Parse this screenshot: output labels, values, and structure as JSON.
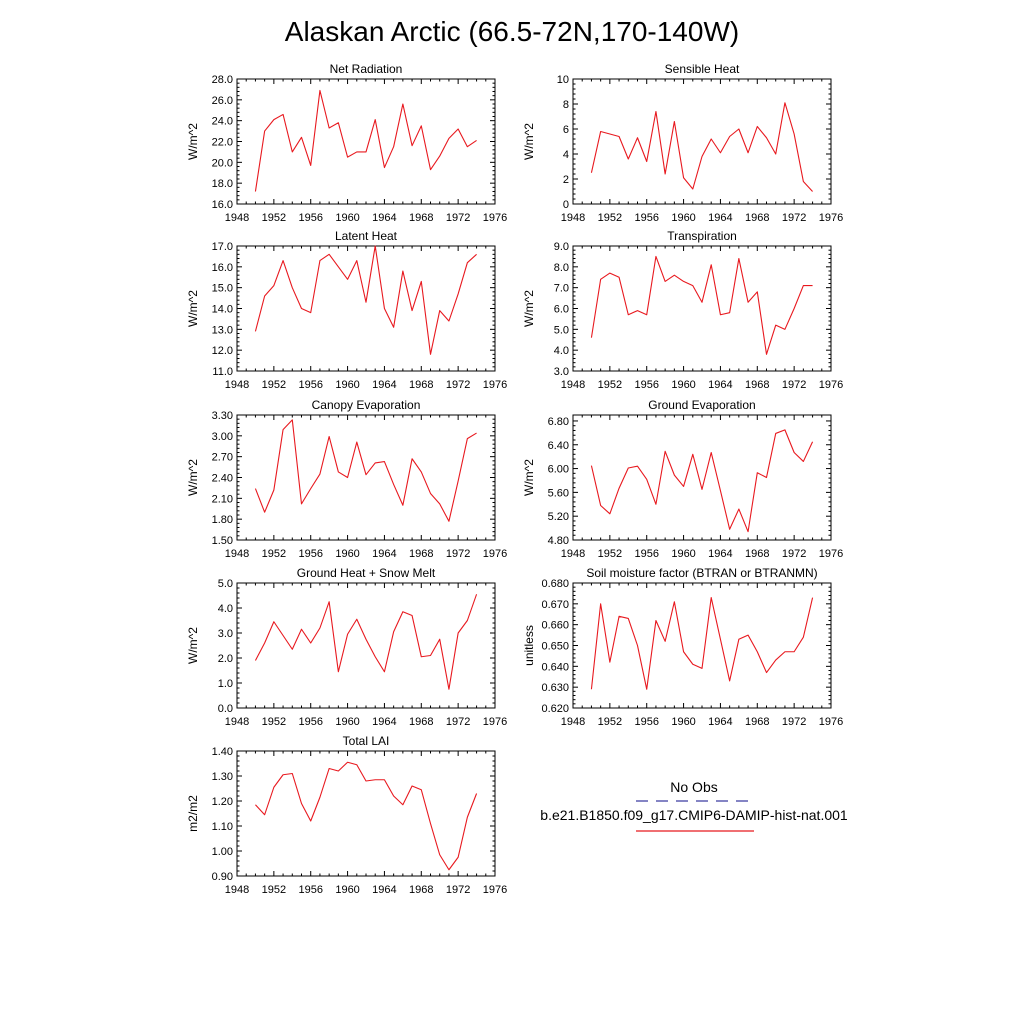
{
  "figure": {
    "title": "Alaskan Arctic (66.5-72N,170-140W)",
    "legend": {
      "obs_label": "No Obs",
      "obs_color": "#3a3aa0",
      "model_label": "b.e21.B1850.f09_g17.CMIP6-DAMIP-hist-nat.001",
      "model_color": "#e8191f"
    }
  },
  "chart_data": [
    {
      "type": "line",
      "title": "Net Radiation",
      "ylabel": "W/m^2",
      "xlim": [
        1948,
        1976
      ],
      "xticks": [
        1948,
        1952,
        1956,
        1960,
        1964,
        1968,
        1972,
        1976
      ],
      "ylim": [
        16.0,
        28.0
      ],
      "yticks": [
        "16.0",
        "18.0",
        "20.0",
        "22.0",
        "24.0",
        "26.0",
        "28.0"
      ],
      "series": [
        {
          "color": "#e8191f",
          "x": [
            1950,
            1951,
            1952,
            1953,
            1954,
            1955,
            1956,
            1957,
            1958,
            1959,
            1960,
            1961,
            1962,
            1963,
            1964,
            1965,
            1966,
            1967,
            1968,
            1969,
            1970,
            1971,
            1972,
            1973,
            1974
          ],
          "y": [
            17.2,
            23.0,
            24.1,
            24.6,
            21.0,
            22.4,
            19.7,
            26.9,
            23.3,
            23.8,
            20.5,
            21.0,
            21.0,
            24.1,
            19.5,
            21.5,
            25.6,
            21.6,
            23.5,
            19.3,
            20.6,
            22.3,
            23.2,
            21.5,
            22.1
          ]
        }
      ]
    },
    {
      "type": "line",
      "title": "Sensible Heat",
      "ylabel": "W/m^2",
      "xlim": [
        1948,
        1976
      ],
      "xticks": [
        1948,
        1952,
        1956,
        1960,
        1964,
        1968,
        1972,
        1976
      ],
      "ylim": [
        0,
        10
      ],
      "yticks": [
        "0",
        "2",
        "4",
        "6",
        "8",
        "10"
      ],
      "series": [
        {
          "color": "#e8191f",
          "x": [
            1950,
            1951,
            1952,
            1953,
            1954,
            1955,
            1956,
            1957,
            1958,
            1959,
            1960,
            1961,
            1962,
            1963,
            1964,
            1965,
            1966,
            1967,
            1968,
            1969,
            1970,
            1971,
            1972,
            1973,
            1974
          ],
          "y": [
            2.5,
            5.8,
            5.6,
            5.4,
            3.6,
            5.3,
            3.4,
            7.4,
            2.4,
            6.6,
            2.1,
            1.2,
            3.8,
            5.2,
            4.1,
            5.4,
            6.0,
            4.1,
            6.2,
            5.3,
            4.0,
            8.1,
            5.6,
            1.8,
            1.0
          ]
        }
      ]
    },
    {
      "type": "line",
      "title": "Latent Heat",
      "ylabel": "W/m^2",
      "xlim": [
        1948,
        1976
      ],
      "xticks": [
        1948,
        1952,
        1956,
        1960,
        1964,
        1968,
        1972,
        1976
      ],
      "ylim": [
        11.0,
        17.0
      ],
      "yticks": [
        "11.0",
        "12.0",
        "13.0",
        "14.0",
        "15.0",
        "16.0",
        "17.0"
      ],
      "series": [
        {
          "color": "#e8191f",
          "x": [
            1950,
            1951,
            1952,
            1953,
            1954,
            1955,
            1956,
            1957,
            1958,
            1959,
            1960,
            1961,
            1962,
            1963,
            1964,
            1965,
            1966,
            1967,
            1968,
            1969,
            1970,
            1971,
            1972,
            1973,
            1974
          ],
          "y": [
            12.9,
            14.6,
            15.1,
            16.3,
            15.0,
            14.0,
            13.8,
            16.3,
            16.6,
            16.0,
            15.4,
            16.3,
            14.3,
            17.0,
            14.0,
            13.1,
            15.8,
            13.9,
            15.3,
            11.8,
            13.9,
            13.4,
            14.7,
            16.2,
            16.6
          ]
        }
      ]
    },
    {
      "type": "line",
      "title": "Transpiration",
      "ylabel": "W/m^2",
      "xlim": [
        1948,
        1976
      ],
      "xticks": [
        1948,
        1952,
        1956,
        1960,
        1964,
        1968,
        1972,
        1976
      ],
      "ylim": [
        3.0,
        9.0
      ],
      "yticks": [
        "3.0",
        "4.0",
        "5.0",
        "6.0",
        "7.0",
        "8.0",
        "9.0"
      ],
      "series": [
        {
          "color": "#e8191f",
          "x": [
            1950,
            1951,
            1952,
            1953,
            1954,
            1955,
            1956,
            1957,
            1958,
            1959,
            1960,
            1961,
            1962,
            1963,
            1964,
            1965,
            1966,
            1967,
            1968,
            1969,
            1970,
            1971,
            1972,
            1973,
            1974
          ],
          "y": [
            4.6,
            7.4,
            7.7,
            7.5,
            5.7,
            5.9,
            5.7,
            8.5,
            7.3,
            7.6,
            7.3,
            7.1,
            6.3,
            8.1,
            5.7,
            5.8,
            8.4,
            6.3,
            6.8,
            3.8,
            5.2,
            5.0,
            6.0,
            7.1,
            7.1
          ]
        }
      ]
    },
    {
      "type": "line",
      "title": "Canopy Evaporation",
      "ylabel": "W/m^2",
      "xlim": [
        1948,
        1976
      ],
      "xticks": [
        1948,
        1952,
        1956,
        1960,
        1964,
        1968,
        1972,
        1976
      ],
      "ylim": [
        1.5,
        3.3
      ],
      "yticks": [
        "1.50",
        "1.80",
        "2.10",
        "2.40",
        "2.70",
        "3.00",
        "3.30"
      ],
      "series": [
        {
          "color": "#e8191f",
          "x": [
            1950,
            1951,
            1952,
            1953,
            1954,
            1955,
            1956,
            1957,
            1958,
            1959,
            1960,
            1961,
            1962,
            1963,
            1964,
            1965,
            1966,
            1967,
            1968,
            1969,
            1970,
            1971,
            1972,
            1973,
            1974
          ],
          "y": [
            2.24,
            1.9,
            2.22,
            3.09,
            3.23,
            2.02,
            2.24,
            2.45,
            2.99,
            2.48,
            2.4,
            2.91,
            2.44,
            2.61,
            2.63,
            2.3,
            2.0,
            2.67,
            2.48,
            2.17,
            2.02,
            1.77,
            2.35,
            2.96,
            3.04
          ]
        }
      ]
    },
    {
      "type": "line",
      "title": "Ground Evaporation",
      "ylabel": "W/m^2",
      "xlim": [
        1948,
        1976
      ],
      "xticks": [
        1948,
        1952,
        1956,
        1960,
        1964,
        1968,
        1972,
        1976
      ],
      "ylim": [
        4.8,
        6.9
      ],
      "yticks": [
        "4.80",
        "5.20",
        "5.60",
        "6.00",
        "6.40",
        "6.80"
      ],
      "series": [
        {
          "color": "#e8191f",
          "x": [
            1950,
            1951,
            1952,
            1953,
            1954,
            1955,
            1956,
            1957,
            1958,
            1959,
            1960,
            1961,
            1962,
            1963,
            1964,
            1965,
            1966,
            1967,
            1968,
            1969,
            1970,
            1971,
            1972,
            1973,
            1974
          ],
          "y": [
            6.05,
            5.38,
            5.24,
            5.67,
            6.01,
            6.04,
            5.82,
            5.4,
            6.29,
            5.89,
            5.7,
            6.24,
            5.65,
            6.27,
            5.63,
            4.98,
            5.32,
            4.94,
            5.93,
            5.85,
            6.59,
            6.65,
            6.27,
            6.12,
            6.45
          ]
        }
      ]
    },
    {
      "type": "line",
      "title": "Ground Heat + Snow Melt",
      "ylabel": "W/m^2",
      "xlim": [
        1948,
        1976
      ],
      "xticks": [
        1948,
        1952,
        1956,
        1960,
        1964,
        1968,
        1972,
        1976
      ],
      "ylim": [
        0.0,
        5.0
      ],
      "yticks": [
        "0.0",
        "1.0",
        "2.0",
        "3.0",
        "4.0",
        "5.0"
      ],
      "series": [
        {
          "color": "#e8191f",
          "x": [
            1950,
            1951,
            1952,
            1953,
            1954,
            1955,
            1956,
            1957,
            1958,
            1959,
            1960,
            1961,
            1962,
            1963,
            1964,
            1965,
            1966,
            1967,
            1968,
            1969,
            1970,
            1971,
            1972,
            1973,
            1974
          ],
          "y": [
            1.9,
            2.6,
            3.45,
            2.9,
            2.35,
            3.15,
            2.6,
            3.2,
            4.25,
            1.45,
            2.95,
            3.55,
            2.75,
            2.05,
            1.45,
            3.05,
            3.85,
            3.7,
            2.05,
            2.1,
            2.75,
            0.75,
            3.0,
            3.5,
            4.55
          ]
        }
      ]
    },
    {
      "type": "line",
      "title": "Soil moisture factor (BTRAN or BTRANMN)",
      "ylabel": "unitless",
      "xlim": [
        1948,
        1976
      ],
      "xticks": [
        1948,
        1952,
        1956,
        1960,
        1964,
        1968,
        1972,
        1976
      ],
      "ylim": [
        0.62,
        0.68
      ],
      "yticks": [
        "0.620",
        "0.630",
        "0.640",
        "0.650",
        "0.660",
        "0.670",
        "0.680"
      ],
      "series": [
        {
          "color": "#e8191f",
          "x": [
            1950,
            1951,
            1952,
            1953,
            1954,
            1955,
            1956,
            1957,
            1958,
            1959,
            1960,
            1961,
            1962,
            1963,
            1964,
            1965,
            1966,
            1967,
            1968,
            1969,
            1970,
            1971,
            1972,
            1973,
            1974
          ],
          "y": [
            0.629,
            0.67,
            0.642,
            0.664,
            0.663,
            0.65,
            0.629,
            0.662,
            0.652,
            0.671,
            0.647,
            0.641,
            0.639,
            0.673,
            0.653,
            0.633,
            0.653,
            0.655,
            0.647,
            0.637,
            0.643,
            0.647,
            0.647,
            0.654,
            0.673
          ]
        }
      ]
    },
    {
      "type": "line",
      "title": "Total LAI",
      "ylabel": "m2/m2",
      "xlim": [
        1948,
        1976
      ],
      "xticks": [
        1948,
        1952,
        1956,
        1960,
        1964,
        1968,
        1972,
        1976
      ],
      "ylim": [
        0.9,
        1.4
      ],
      "yticks": [
        "0.90",
        "1.00",
        "1.10",
        "1.20",
        "1.30",
        "1.40"
      ],
      "series": [
        {
          "color": "#e8191f",
          "x": [
            1950,
            1951,
            1952,
            1953,
            1954,
            1955,
            1956,
            1957,
            1958,
            1959,
            1960,
            1961,
            1962,
            1963,
            1964,
            1965,
            1966,
            1967,
            1968,
            1969,
            1970,
            1971,
            1972,
            1973,
            1974
          ],
          "y": [
            1.185,
            1.145,
            1.255,
            1.305,
            1.31,
            1.19,
            1.12,
            1.215,
            1.33,
            1.32,
            1.355,
            1.345,
            1.28,
            1.285,
            1.285,
            1.22,
            1.185,
            1.26,
            1.245,
            1.11,
            0.985,
            0.925,
            0.975,
            1.135,
            1.23
          ]
        }
      ]
    }
  ]
}
